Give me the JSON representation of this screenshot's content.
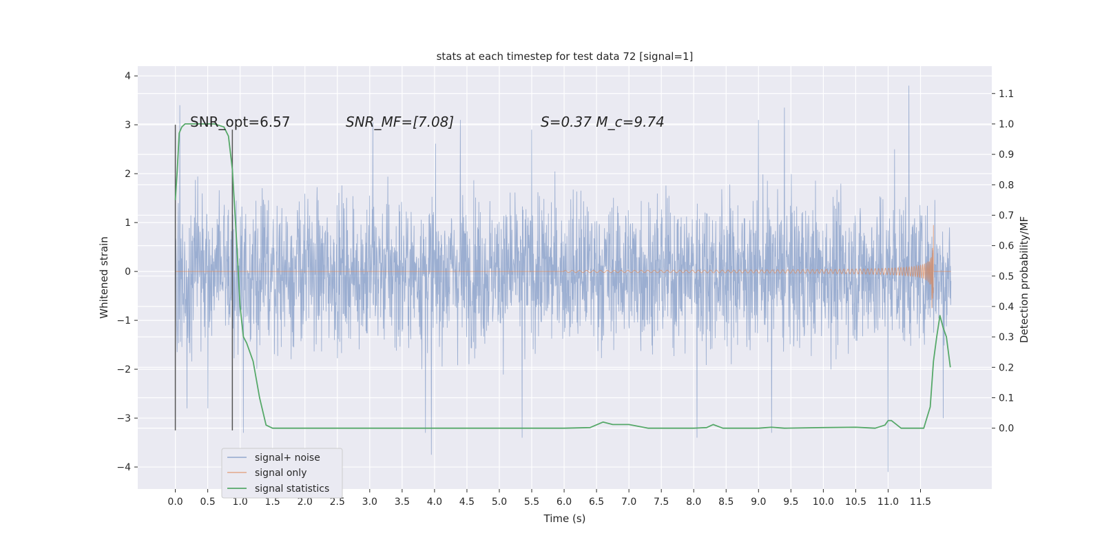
{
  "chart_data": {
    "type": "line",
    "title": "stats at each timestep for test data 72 [signal=1]",
    "xlabel": "Time (s)",
    "ylabel": "Whitened strain",
    "ylabel_right": "Detection probability/MF",
    "xlim": [
      -0.58,
      12.6
    ],
    "ylim": [
      -4.45,
      4.2
    ],
    "ylim_right": [
      -0.2,
      1.19
    ],
    "x_ticks": [
      "0.0",
      "0.5",
      "1.0",
      "1.5",
      "2.0",
      "2.5",
      "3.0",
      "3.5",
      "4.0",
      "4.5",
      "5.0",
      "5.5",
      "6.0",
      "6.5",
      "7.0",
      "7.5",
      "8.0",
      "8.5",
      "9.0",
      "9.5",
      "10.0",
      "10.5",
      "11.0",
      "11.5"
    ],
    "y_ticks": [
      "4",
      "3",
      "2",
      "1",
      "0",
      "−1",
      "−2",
      "−3",
      "−4"
    ],
    "y_ticks_right": [
      "1.1",
      "1.0",
      "0.9",
      "0.8",
      "0.7",
      "0.6",
      "0.5",
      "0.4",
      "0.3",
      "0.2",
      "0.1",
      "0.0"
    ],
    "grid": true,
    "legend_position": "lower-left",
    "annotations": [
      {
        "text": "SNR_opt=6.57",
        "x": 0.2,
        "y": 3.05
      },
      {
        "text": "SNR_MF=[7.08]",
        "x": 2.6,
        "y": 3.05
      },
      {
        "text": "S=0.37   M_c=9.74",
        "x": 5.6,
        "y": 3.05
      }
    ],
    "vertical_lines": [
      {
        "x": 0.0,
        "ymin": -3.25,
        "ymax": 3.0
      },
      {
        "x": 0.88,
        "ymin": -3.25,
        "ymax": 2.9
      }
    ],
    "series": [
      {
        "name": "signal+ noise",
        "color": "#4c72b0",
        "description": "whitened noisy strain, roughly Gaussian around 0 with peaks near ±3.5",
        "x_range": [
          0.0,
          11.97
        ],
        "spikes": [
          {
            "x": 0.07,
            "y": 3.4
          },
          {
            "x": 0.18,
            "y": -2.8
          },
          {
            "x": 0.5,
            "y": -2.8
          },
          {
            "x": 1.05,
            "y": -3.3
          },
          {
            "x": 3.05,
            "y": 3.05
          },
          {
            "x": 3.95,
            "y": -3.75
          },
          {
            "x": 3.86,
            "y": -3.3
          },
          {
            "x": 4.4,
            "y": 3.1
          },
          {
            "x": 5.35,
            "y": -3.4
          },
          {
            "x": 5.5,
            "y": 2.9
          },
          {
            "x": 8.05,
            "y": -3.4
          },
          {
            "x": 9.0,
            "y": 3.1
          },
          {
            "x": 9.4,
            "y": 3.35
          },
          {
            "x": 9.2,
            "y": -3.3
          },
          {
            "x": 11.0,
            "y": -4.1
          },
          {
            "x": 11.32,
            "y": 3.8
          },
          {
            "x": 11.1,
            "y": 2.5
          },
          {
            "x": 11.85,
            "y": -3.0
          }
        ]
      },
      {
        "name": "signal only",
        "color": "#dd8452",
        "description": "chirp waveform, amplitude growing toward merger",
        "chirp": {
          "start": 7.0,
          "end": 11.7,
          "peak_amplitude": 0.95,
          "min_amplitude": -0.75
        }
      },
      {
        "name": "signal statistics",
        "color": "#55a868",
        "axis": "right",
        "x": [
          0.0,
          0.03,
          0.06,
          0.1,
          0.15,
          0.2,
          0.3,
          0.4,
          0.6,
          0.75,
          0.82,
          0.88,
          0.95,
          1.0,
          1.05,
          1.1,
          1.2,
          1.3,
          1.4,
          1.5,
          1.6,
          1.7,
          2.0,
          3.0,
          4.0,
          5.0,
          6.0,
          6.4,
          6.6,
          6.75,
          7.0,
          7.3,
          7.5,
          8.0,
          8.2,
          8.3,
          8.45,
          8.6,
          9.0,
          9.2,
          9.4,
          10.0,
          10.5,
          10.8,
          10.95,
          11.0,
          11.05,
          11.2,
          11.45,
          11.55,
          11.65,
          11.7,
          11.75,
          11.8,
          11.85,
          11.9,
          11.96
        ],
        "values": [
          0.75,
          0.85,
          0.97,
          0.99,
          1.0,
          1.0,
          1.0,
          1.0,
          1.0,
          0.99,
          0.96,
          0.85,
          0.6,
          0.4,
          0.3,
          0.28,
          0.22,
          0.1,
          0.01,
          0.0,
          0.0,
          0.0,
          0.0,
          0.0,
          0.0,
          0.0,
          0.0,
          0.002,
          0.02,
          0.012,
          0.012,
          0.0,
          0.0,
          0.0,
          0.002,
          0.012,
          0.0,
          0.0,
          0.0,
          0.003,
          0.0,
          0.002,
          0.003,
          0.0,
          0.01,
          0.025,
          0.025,
          0.0,
          0.0,
          0.0,
          0.07,
          0.22,
          0.3,
          0.37,
          0.33,
          0.3,
          0.2
        ]
      }
    ]
  }
}
